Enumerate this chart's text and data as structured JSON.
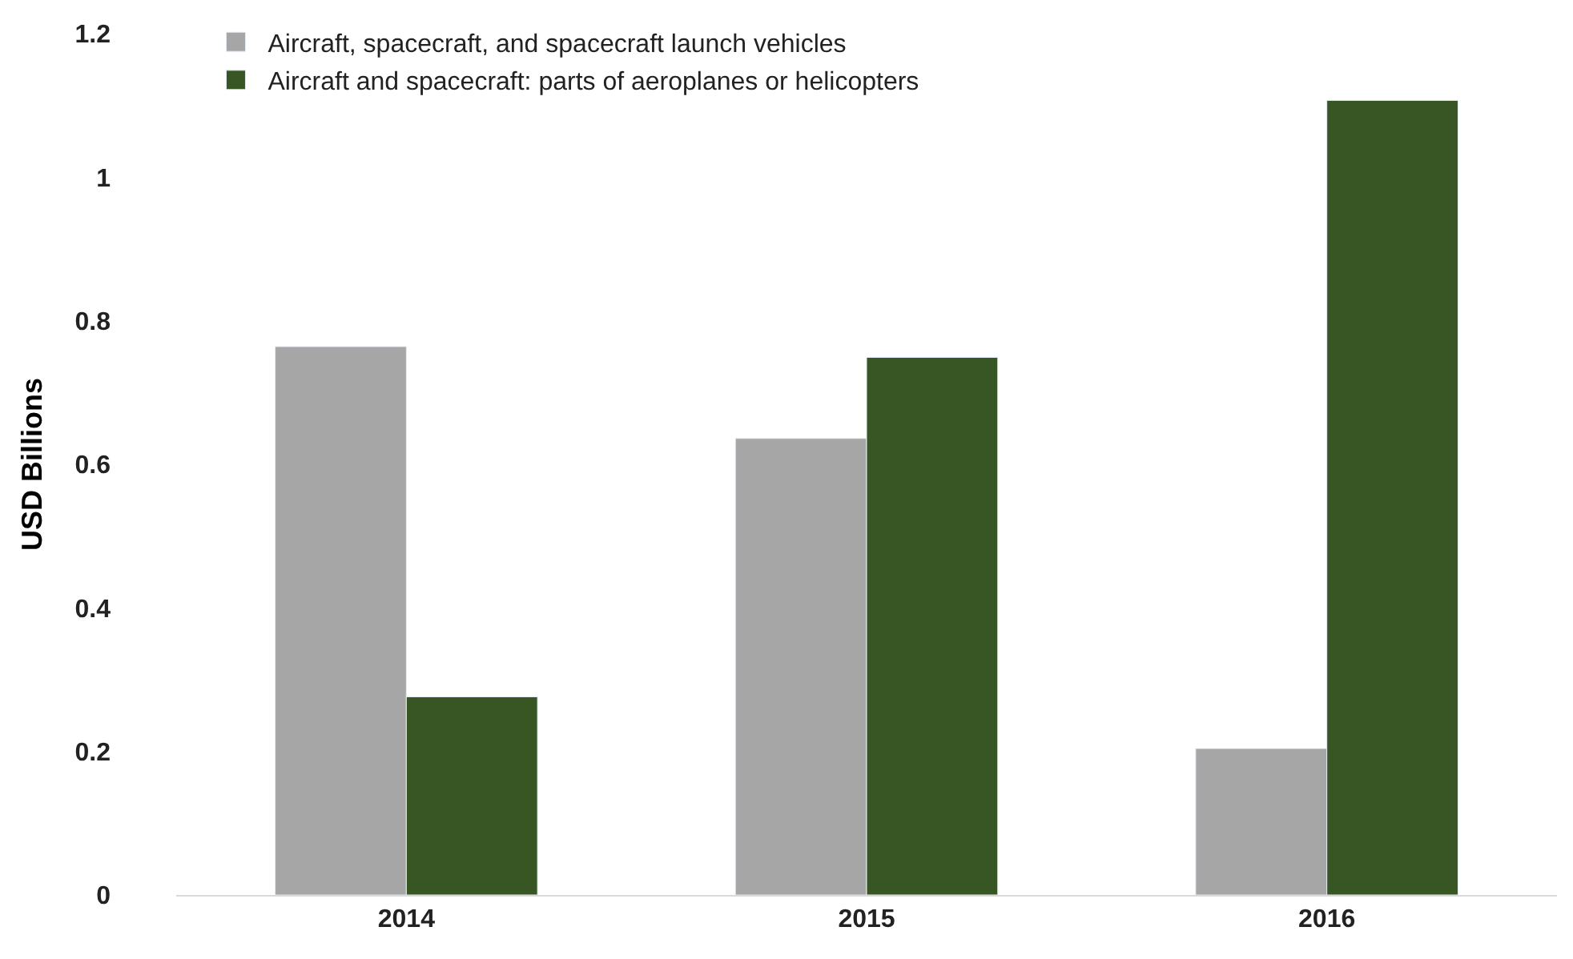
{
  "chart_data": {
    "type": "bar",
    "ylabel": "USD Billions",
    "categories": [
      "2014",
      "2015",
      "2016"
    ],
    "series": [
      {
        "name": "Aircraft, spacecraft, and spacecraft launch vehicles",
        "color": "#a6a6a6",
        "values": [
          0.764,
          0.636,
          0.204
        ]
      },
      {
        "name": "Aircraft and spacecraft: parts of aeroplanes or helicopters",
        "color": "#375623",
        "values": [
          0.276,
          0.749,
          1.107
        ]
      }
    ],
    "ylim": [
      0,
      1.2
    ],
    "yticks": [
      0,
      0.2,
      0.4,
      0.6,
      0.8,
      1,
      1.2
    ],
    "legend": "top left"
  }
}
